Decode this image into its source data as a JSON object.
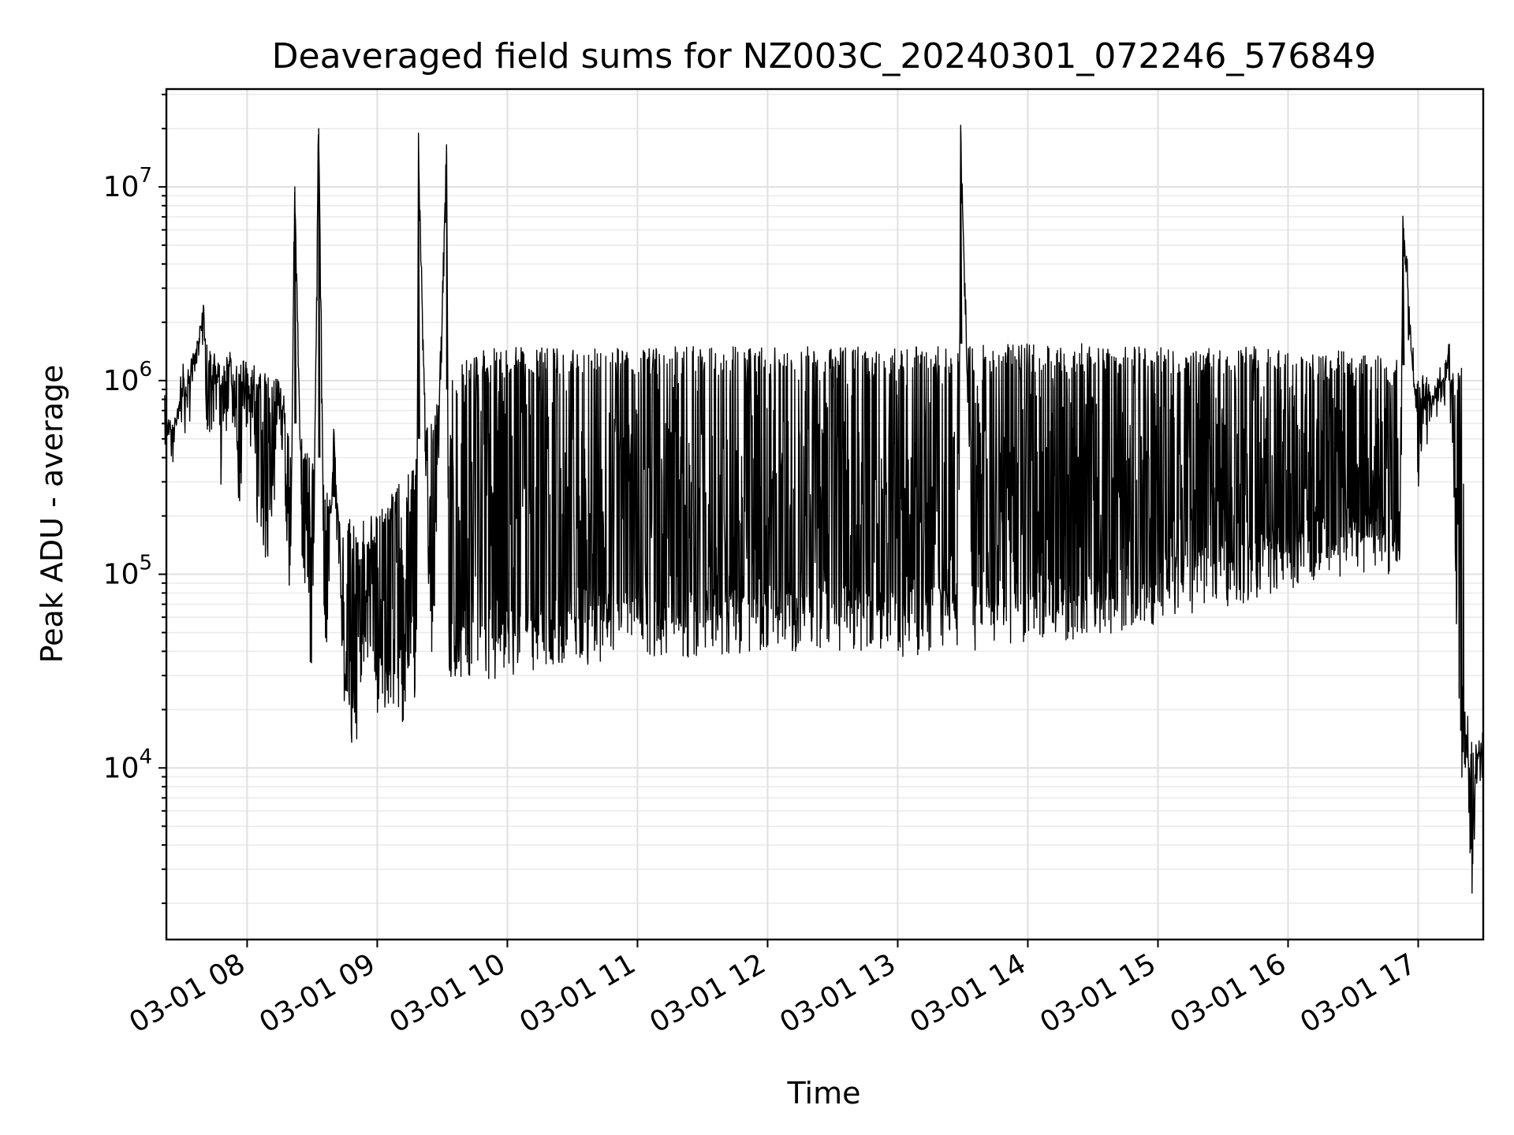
{
  "chart_data": {
    "type": "line",
    "title": "Deaveraged field sums for NZ003C_20240301_072246_576849",
    "xlabel": "Time",
    "ylabel": "Peak ADU - average",
    "yscale": "log",
    "ylim": [
      1300,
      32000000
    ],
    "xlim": [
      "2024-03-01 07:22:46",
      "2024-03-01 17:30:00"
    ],
    "grid": true,
    "legend": "none",
    "line_color": "#000000",
    "x_ticks": [
      {
        "at": "2024-03-01 08:00",
        "label": "03-01 08"
      },
      {
        "at": "2024-03-01 09:00",
        "label": "03-01 09"
      },
      {
        "at": "2024-03-01 10:00",
        "label": "03-01 10"
      },
      {
        "at": "2024-03-01 11:00",
        "label": "03-01 11"
      },
      {
        "at": "2024-03-01 12:00",
        "label": "03-01 12"
      },
      {
        "at": "2024-03-01 13:00",
        "label": "03-01 13"
      },
      {
        "at": "2024-03-01 14:00",
        "label": "03-01 14"
      },
      {
        "at": "2024-03-01 15:00",
        "label": "03-01 15"
      },
      {
        "at": "2024-03-01 16:00",
        "label": "03-01 16"
      },
      {
        "at": "2024-03-01 17:00",
        "label": "03-01 17"
      }
    ],
    "y_ticks": [
      {
        "value": 10000,
        "base": "10",
        "exp": "4"
      },
      {
        "value": 100000,
        "base": "10",
        "exp": "5"
      },
      {
        "value": 1000000,
        "base": "10",
        "exp": "6"
      },
      {
        "value": 10000000,
        "base": "10",
        "exp": "7"
      }
    ],
    "series": [
      {
        "x": [
          "2024-03-01 07:22",
          "2024-03-01 07:26",
          "2024-03-01 07:30",
          "2024-03-01 07:33",
          "2024-03-01 07:37",
          "2024-03-01 07:40",
          "2024-03-01 07:42",
          "2024-03-01 07:45",
          "2024-03-01 07:48",
          "2024-03-01 07:52",
          "2024-03-01 07:56",
          "2024-03-01 08:00",
          "2024-03-01 08:05",
          "2024-03-01 08:10",
          "2024-03-01 08:15",
          "2024-03-01 08:20",
          "2024-03-01 08:22",
          "2024-03-01 08:25",
          "2024-03-01 08:30",
          "2024-03-01 08:33",
          "2024-03-01 08:36",
          "2024-03-01 08:40",
          "2024-03-01 08:45",
          "2024-03-01 08:50",
          "2024-03-01 08:55",
          "2024-03-01 09:00",
          "2024-03-01 09:10",
          "2024-03-01 09:18",
          "2024-03-01 09:19",
          "2024-03-01 09:25",
          "2024-03-01 09:32",
          "2024-03-01 09:33",
          "2024-03-01 09:40",
          "2024-03-01 09:50",
          "2024-03-01 10:00",
          "2024-03-01 10:30",
          "2024-03-01 11:00",
          "2024-03-01 11:30",
          "2024-03-01 12:00",
          "2024-03-01 12:30",
          "2024-03-01 13:00",
          "2024-03-01 13:28",
          "2024-03-01 13:29",
          "2024-03-01 13:35",
          "2024-03-01 14:00",
          "2024-03-01 14:30",
          "2024-03-01 15:00",
          "2024-03-01 15:30",
          "2024-03-01 16:00",
          "2024-03-01 16:30",
          "2024-03-01 16:52",
          "2024-03-01 16:53",
          "2024-03-01 17:00",
          "2024-03-01 17:12",
          "2024-03-01 17:14",
          "2024-03-01 17:16",
          "2024-03-01 17:18",
          "2024-03-01 17:20",
          "2024-03-01 17:23",
          "2024-03-01 17:25",
          "2024-03-01 17:27",
          "2024-03-01 17:30"
        ],
        "y": [
          600000,
          450000,
          900000,
          700000,
          1500000,
          2000000,
          600000,
          1000000,
          350000,
          1200000,
          300000,
          900000,
          250000,
          150000,
          800000,
          100000,
          10000000,
          200000,
          30000,
          20000000,
          30000,
          500000,
          25000,
          17000,
          60000,
          25000,
          22000,
          30000,
          13000000,
          30000,
          15000000,
          40000,
          45000,
          40000,
          45000,
          50000,
          55000,
          55000,
          60000,
          60000,
          55000,
          60000,
          19000000,
          60000,
          65000,
          70000,
          80000,
          100000,
          120000,
          150000,
          150000,
          6500000,
          400000,
          1000000,
          1200000,
          600000,
          50000,
          12000,
          11000,
          2000,
          12000,
          10000
        ],
        "upper_envelope": [
          700000,
          600000,
          1000000,
          1200000,
          1600000,
          1800000,
          1500000,
          1300000,
          1200000,
          1400000,
          1300000,
          1300000,
          1200000,
          1100000,
          1000000,
          700000,
          600000,
          500000,
          450000,
          400000,
          300000,
          250000,
          200000,
          200000,
          200000,
          200000,
          300000,
          400000,
          500000,
          700000,
          900000,
          1100000,
          1300000,
          1500000,
          1500000,
          1500000,
          1500000,
          1500000,
          1500000,
          1500000,
          1500000,
          1500000,
          1550000,
          1550000,
          1550000,
          1550000,
          1500000,
          1500000,
          1500000,
          1400000,
          1300000,
          1200000,
          1100000,
          1000000,
          1000000,
          1100000,
          1200000,
          1200000,
          15000,
          14000,
          13000,
          11000
        ]
      }
    ]
  }
}
